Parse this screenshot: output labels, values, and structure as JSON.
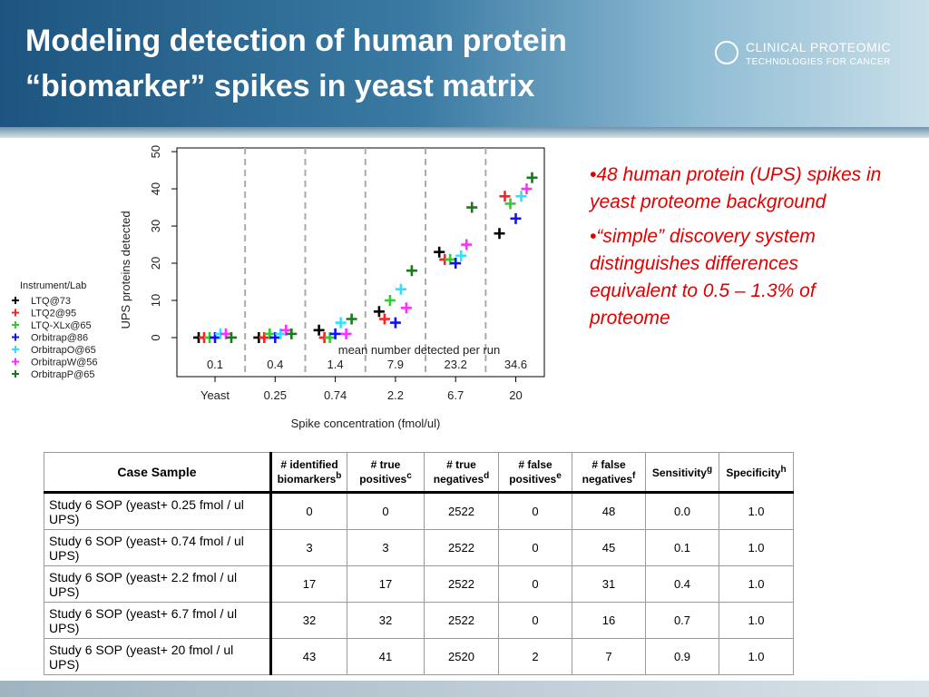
{
  "header": {
    "title": [
      "Modeling detection of human protein",
      "“biomarker” spikes in yeast matrix"
    ],
    "logo": [
      "CLINICAL PROTEOMIC",
      "TECHNOLOGIES FOR CANCER"
    ]
  },
  "chart_data": {
    "type": "scatter",
    "y_label": "UPS proteins detected",
    "x_label": "Spike concentration (fmol/ul)",
    "annotation": "mean number detected per run",
    "legend_title": "Instrument/Lab",
    "categories": [
      "Yeast",
      "0.25",
      "0.74",
      "2.2",
      "6.7",
      "20"
    ],
    "means": [
      "0.1",
      "0.4",
      "1.4",
      "7.9",
      "23.2",
      "34.6"
    ],
    "ylim": [
      -10.5,
      51
    ],
    "yticks": [
      0,
      10,
      20,
      30,
      40,
      50
    ],
    "series": [
      {
        "name": "LTQ@73",
        "color": "#000000",
        "values": [
          0,
          0,
          2,
          7,
          23,
          28
        ]
      },
      {
        "name": "LTQ2@95",
        "color": "#ff2020",
        "values": [
          0,
          0,
          0,
          5,
          21,
          38
        ]
      },
      {
        "name": "LTQ-XLx@65",
        "color": "#30cc30",
        "values": [
          0,
          1,
          0,
          10,
          21,
          36
        ]
      },
      {
        "name": "Orbitrap@86",
        "color": "#1010ff",
        "values": [
          0,
          0,
          1,
          4,
          20,
          32
        ]
      },
      {
        "name": "OrbitrapO@65",
        "color": "#30e0ff",
        "values": [
          1,
          1,
          4,
          13,
          22,
          38
        ]
      },
      {
        "name": "OrbitrapW@56",
        "color": "#ff30ff",
        "values": [
          1,
          2,
          1,
          8,
          25,
          40
        ]
      },
      {
        "name": "OrbitrapP@65",
        "color": "#1a7a1a",
        "values": [
          0,
          1,
          5,
          18,
          35,
          43
        ]
      }
    ]
  },
  "bullets": [
    "•48 human protein (UPS) spikes in yeast proteome background",
    "•“simple” discovery system distinguishes differences equivalent to 0.5 – 1.3% of proteome"
  ],
  "table": {
    "headers": [
      {
        "text": "Case Sample"
      },
      {
        "text": "# identified biomarkers",
        "sup": "b"
      },
      {
        "text": "# true positives",
        "sup": "c"
      },
      {
        "text": "# true negatives",
        "sup": "d"
      },
      {
        "text": "# false positives",
        "sup": "e"
      },
      {
        "text": "# false negatives",
        "sup": "f"
      },
      {
        "text": "Sensitivity",
        "sup": "g"
      },
      {
        "text": "Specificity",
        "sup": "h"
      }
    ],
    "rows": [
      [
        "Study 6 SOP (yeast+ 0.25 fmol / ul UPS)",
        0,
        0,
        2522,
        0,
        48,
        "0.0",
        "1.0"
      ],
      [
        "Study 6 SOP (yeast+ 0.74 fmol / ul UPS)",
        3,
        3,
        2522,
        0,
        45,
        "0.1",
        "1.0"
      ],
      [
        "Study 6 SOP (yeast+ 2.2 fmol / ul UPS)",
        17,
        17,
        2522,
        0,
        31,
        "0.4",
        "1.0"
      ],
      [
        "Study 6 SOP (yeast+ 6.7 fmol / ul UPS)",
        32,
        32,
        2522,
        0,
        16,
        "0.7",
        "1.0"
      ],
      [
        "Study 6 SOP (yeast+ 20 fmol / ul UPS)",
        43,
        41,
        2520,
        2,
        7,
        "0.9",
        "1.0"
      ]
    ]
  }
}
